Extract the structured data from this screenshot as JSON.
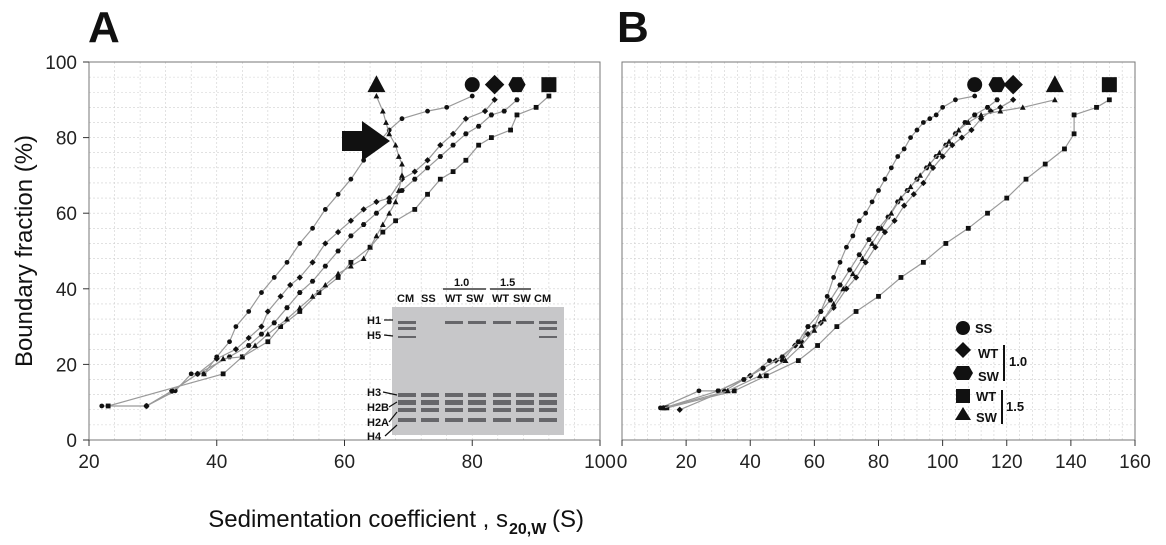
{
  "figure": {
    "panel_a": "A",
    "panel_b": "B",
    "ylabel": "Boundary fraction (%)",
    "xlabel_main": "Sedimentation coefficient ,  s",
    "xlabel_sub": "20,W",
    "xlabel_unit": " (S)"
  },
  "legend": {
    "items": [
      "SS",
      "WT",
      "SW",
      "WT",
      "SW"
    ],
    "group_labels": [
      "1.0",
      "1.5"
    ]
  },
  "gel": {
    "lanes": [
      "CM",
      "SS",
      "WT",
      "SW",
      "WT",
      "SW",
      "CM"
    ],
    "group_labels": [
      "1.0",
      "1.5"
    ],
    "bands": [
      "H1",
      "H5",
      "H3",
      "H2B",
      "H2A",
      "H4"
    ]
  },
  "colors": {
    "line": "#9a9a9a",
    "marker": "#111111",
    "grid": "#cfcfcf",
    "frame": "#777777",
    "gel_bg": "#c7c7c9"
  },
  "chart_data": [
    {
      "type": "line",
      "title": "A",
      "xlabel": "Sedimentation coefficient , s20,W (S)",
      "ylabel": "Boundary fraction (%)",
      "xlim": [
        20,
        100
      ],
      "ylim": [
        0,
        100
      ],
      "xticks": [
        20,
        40,
        60,
        80,
        100
      ],
      "yticks": [
        0,
        20,
        40,
        60,
        80,
        100
      ],
      "grid": true,
      "series": [
        {
          "name": "SS",
          "marker": "circle",
          "points": [
            [
              22,
              9
            ],
            [
              29,
              9
            ],
            [
              33.5,
              13
            ],
            [
              36,
              17.5
            ],
            [
              38,
              17.5
            ],
            [
              40,
              22
            ],
            [
              42,
              26
            ],
            [
              43,
              30
            ],
            [
              45,
              34
            ],
            [
              47,
              39
            ],
            [
              49,
              43
            ],
            [
              51,
              47
            ],
            [
              53,
              52
            ],
            [
              55,
              56
            ],
            [
              57,
              61
            ],
            [
              59,
              65
            ],
            [
              61,
              69
            ],
            [
              63,
              74
            ],
            [
              65,
              78
            ],
            [
              67,
              82
            ],
            [
              69,
              85
            ],
            [
              73,
              87
            ],
            [
              76,
              88
            ],
            [
              80,
              91
            ]
          ]
        },
        {
          "name": "WT",
          "marker": "diamond",
          "points": [
            [
              29,
              9
            ],
            [
              33,
              13
            ],
            [
              37,
              17.5
            ],
            [
              40,
              21.5
            ],
            [
              43,
              24
            ],
            [
              45,
              27
            ],
            [
              47,
              30
            ],
            [
              48,
              34
            ],
            [
              50,
              38
            ],
            [
              51.5,
              41
            ],
            [
              53,
              43
            ],
            [
              55,
              47
            ],
            [
              57,
              52
            ],
            [
              59,
              55
            ],
            [
              61,
              58
            ],
            [
              63,
              61
            ],
            [
              65,
              63
            ],
            [
              67,
              64
            ],
            [
              69,
              69
            ],
            [
              71,
              71
            ],
            [
              73,
              74
            ],
            [
              75,
              78
            ],
            [
              77,
              81
            ],
            [
              79,
              85
            ],
            [
              82,
              87
            ],
            [
              83.5,
              90
            ]
          ]
        },
        {
          "name": "SW",
          "marker": "hexagon",
          "points": [
            [
              29,
              9
            ],
            [
              33,
              13
            ],
            [
              37,
              17.5
            ],
            [
              42,
              22
            ],
            [
              45,
              25
            ],
            [
              47,
              28
            ],
            [
              49,
              31
            ],
            [
              51,
              35
            ],
            [
              53,
              39
            ],
            [
              55,
              42
            ],
            [
              57,
              46
            ],
            [
              59,
              50
            ],
            [
              61,
              54
            ],
            [
              63,
              57
            ],
            [
              65,
              60
            ],
            [
              67,
              63
            ],
            [
              69,
              66
            ],
            [
              71,
              69
            ],
            [
              73,
              72
            ],
            [
              75,
              75
            ],
            [
              77,
              78
            ],
            [
              79,
              81
            ],
            [
              81,
              83
            ],
            [
              83,
              86
            ],
            [
              85,
              87
            ],
            [
              87,
              90
            ]
          ]
        },
        {
          "name": "WT 1.5",
          "marker": "square",
          "points": [
            [
              23,
              9
            ],
            [
              41,
              17.5
            ],
            [
              44,
              22
            ],
            [
              48,
              26
            ],
            [
              50,
              30
            ],
            [
              53,
              34
            ],
            [
              56,
              39
            ],
            [
              59,
              43
            ],
            [
              61,
              47
            ],
            [
              64,
              51
            ],
            [
              66,
              55
            ],
            [
              68,
              58
            ],
            [
              71,
              61
            ],
            [
              73,
              65
            ],
            [
              75,
              69
            ],
            [
              77,
              71
            ],
            [
              79,
              74
            ],
            [
              81,
              78
            ],
            [
              83,
              80
            ],
            [
              86,
              82
            ],
            [
              87,
              86
            ],
            [
              90,
              88
            ],
            [
              92,
              91
            ]
          ]
        },
        {
          "name": "SW 1.5",
          "marker": "triangle",
          "points": [
            [
              38,
              17.5
            ],
            [
              41,
              21.5
            ],
            [
              44,
              22
            ],
            [
              46,
              25
            ],
            [
              48,
              28
            ],
            [
              51,
              32
            ],
            [
              53,
              35
            ],
            [
              55,
              38
            ],
            [
              57,
              41
            ],
            [
              59,
              44
            ],
            [
              61,
              46
            ],
            [
              63,
              48
            ],
            [
              64,
              51
            ],
            [
              65,
              54
            ],
            [
              66,
              57
            ],
            [
              67,
              60
            ],
            [
              68,
              63
            ],
            [
              68.5,
              66
            ],
            [
              69,
              70
            ],
            [
              69,
              73
            ],
            [
              68.5,
              75
            ],
            [
              68,
              78
            ],
            [
              67,
              81
            ],
            [
              66.5,
              84
            ],
            [
              66,
              87
            ],
            [
              65,
              91
            ]
          ]
        }
      ]
    },
    {
      "type": "line",
      "title": "B",
      "xlabel": "Sedimentation coefficient , s20,W (S)",
      "ylabel": "Boundary fraction (%)",
      "xlim": [
        0,
        160
      ],
      "ylim": [
        0,
        100
      ],
      "xticks": [
        0,
        20,
        40,
        60,
        80,
        100,
        120,
        140,
        160
      ],
      "yticks": [
        0,
        20,
        40,
        60,
        80,
        100
      ],
      "grid": true,
      "series": [
        {
          "name": "SS",
          "marker": "circle",
          "points": [
            [
              12,
              8.5
            ],
            [
              24,
              13
            ],
            [
              30,
              13
            ],
            [
              40,
              17
            ],
            [
              46,
              21
            ],
            [
              50,
              21
            ],
            [
              54,
              25
            ],
            [
              56,
              26
            ],
            [
              58,
              30
            ],
            [
              60,
              30
            ],
            [
              62,
              34
            ],
            [
              64,
              38
            ],
            [
              66,
              43
            ],
            [
              68,
              47
            ],
            [
              70,
              51
            ],
            [
              72,
              54
            ],
            [
              74,
              58
            ],
            [
              76,
              60
            ],
            [
              78,
              63
            ],
            [
              80,
              66
            ],
            [
              82,
              69
            ],
            [
              84,
              72
            ],
            [
              86,
              75
            ],
            [
              88,
              77
            ],
            [
              90,
              80
            ],
            [
              92,
              82
            ],
            [
              94,
              84
            ],
            [
              96,
              85
            ],
            [
              98,
              86
            ],
            [
              100,
              88
            ],
            [
              104,
              90
            ],
            [
              110,
              91
            ]
          ]
        },
        {
          "name": "WT",
          "marker": "diamond",
          "points": [
            [
              18,
              8
            ],
            [
              32,
              13
            ],
            [
              40,
              17
            ],
            [
              48,
              21
            ],
            [
              54,
              25
            ],
            [
              58,
              28
            ],
            [
              62,
              31
            ],
            [
              66,
              35
            ],
            [
              70,
              40
            ],
            [
              73,
              43
            ],
            [
              76,
              47
            ],
            [
              79,
              51
            ],
            [
              82,
              55
            ],
            [
              85,
              58
            ],
            [
              88,
              62
            ],
            [
              91,
              65
            ],
            [
              94,
              68
            ],
            [
              97,
              72
            ],
            [
              100,
              75
            ],
            [
              103,
              78
            ],
            [
              106,
              80
            ],
            [
              109,
              82
            ],
            [
              112,
              85
            ],
            [
              115,
              87
            ],
            [
              118,
              88
            ],
            [
              122,
              90
            ]
          ]
        },
        {
          "name": "SW",
          "marker": "hexagon",
          "points": [
            [
              13,
              8.5
            ],
            [
              30,
              13
            ],
            [
              38,
              16
            ],
            [
              44,
              19
            ],
            [
              50,
              22
            ],
            [
              55,
              26
            ],
            [
              58,
              30
            ],
            [
              62,
              34
            ],
            [
              65,
              37
            ],
            [
              68,
              41
            ],
            [
              71,
              45
            ],
            [
              74,
              49
            ],
            [
              77,
              53
            ],
            [
              80,
              56
            ],
            [
              83,
              59
            ],
            [
              86,
              63
            ],
            [
              89,
              66
            ],
            [
              92,
              69
            ],
            [
              95,
              72
            ],
            [
              98,
              75
            ],
            [
              101,
              78
            ],
            [
              104,
              81
            ],
            [
              107,
              84
            ],
            [
              110,
              86
            ],
            [
              114,
              88
            ],
            [
              117,
              90
            ]
          ]
        },
        {
          "name": "WT 1.5",
          "marker": "square",
          "points": [
            [
              14,
              8.5
            ],
            [
              35,
              13
            ],
            [
              45,
              17
            ],
            [
              55,
              21
            ],
            [
              61,
              25
            ],
            [
              67,
              30
            ],
            [
              73,
              34
            ],
            [
              80,
              38
            ],
            [
              87,
              43
            ],
            [
              94,
              47
            ],
            [
              101,
              52
            ],
            [
              108,
              56
            ],
            [
              114,
              60
            ],
            [
              120,
              64
            ],
            [
              126,
              69
            ],
            [
              132,
              73
            ],
            [
              138,
              77
            ],
            [
              141,
              81
            ],
            [
              141,
              86
            ],
            [
              148,
              88
            ],
            [
              152,
              90
            ]
          ]
        },
        {
          "name": "SW 1.5",
          "marker": "triangle",
          "points": [
            [
              13,
              8.5
            ],
            [
              33,
              13
            ],
            [
              43,
              17
            ],
            [
              51,
              21
            ],
            [
              56,
              25
            ],
            [
              60,
              29
            ],
            [
              63,
              32
            ],
            [
              66,
              36
            ],
            [
              69,
              40
            ],
            [
              72,
              44
            ],
            [
              75,
              48
            ],
            [
              78,
              52
            ],
            [
              81,
              56
            ],
            [
              84,
              60
            ],
            [
              87,
              64
            ],
            [
              90,
              67
            ],
            [
              93,
              70
            ],
            [
              96,
              73
            ],
            [
              99,
              76
            ],
            [
              102,
              79
            ],
            [
              105,
              82
            ],
            [
              108,
              84
            ],
            [
              112,
              86
            ],
            [
              118,
              87
            ],
            [
              125,
              88
            ],
            [
              135,
              90
            ]
          ]
        }
      ]
    }
  ]
}
